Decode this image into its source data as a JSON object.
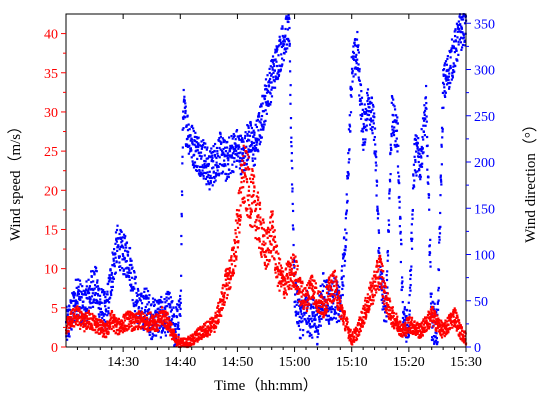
{
  "chart_data": {
    "type": "scatter",
    "x_axis": {
      "label": "Time（hh:mm）",
      "range_minutes": [
        860,
        930
      ],
      "tick_values_minutes": [
        870,
        880,
        890,
        900,
        910,
        920,
        930
      ],
      "tick_labels": [
        "14:30",
        "14:40",
        "14:50",
        "15:00",
        "15:10",
        "15:20",
        "15:30"
      ]
    },
    "y_left": {
      "label": "Wind speed（m/s）",
      "color": "#ff0000",
      "range": [
        0,
        42.5
      ],
      "ticks": [
        0,
        5,
        10,
        15,
        20,
        25,
        30,
        35,
        40
      ],
      "tick_labels": [
        "0",
        "5",
        "10",
        "15",
        "20",
        "25",
        "30",
        "35",
        "40"
      ]
    },
    "y_right": {
      "label": "Wind direction（°）",
      "color": "#0000ff",
      "range": [
        0,
        360
      ],
      "ticks": [
        0,
        50,
        100,
        150,
        200,
        250,
        300,
        350
      ],
      "tick_labels": [
        "0",
        "50",
        "100",
        "150",
        "200",
        "250",
        "300",
        "350"
      ]
    },
    "series": [
      {
        "color": "#0000ff",
        "axis": "right",
        "profile": [
          [
            860,
            20
          ],
          [
            861,
            35
          ],
          [
            862,
            60
          ],
          [
            863,
            40
          ],
          [
            864,
            55
          ],
          [
            865,
            70
          ],
          [
            866,
            45
          ],
          [
            867,
            35
          ],
          [
            868,
            80
          ],
          [
            869,
            110
          ],
          [
            870,
            100
          ],
          [
            871,
            95
          ],
          [
            872,
            60
          ],
          [
            873,
            35
          ],
          [
            874,
            45
          ],
          [
            875,
            30
          ],
          [
            876,
            35
          ],
          [
            877,
            30
          ],
          [
            878,
            40
          ],
          [
            879,
            20
          ],
          [
            880,
            35
          ],
          [
            880.5,
            260
          ],
          [
            881,
            240
          ],
          [
            882,
            220
          ],
          [
            883,
            210
          ],
          [
            884,
            205
          ],
          [
            885,
            190
          ],
          [
            886,
            200
          ],
          [
            887,
            210
          ],
          [
            888,
            200
          ],
          [
            889,
            210
          ],
          [
            890,
            215
          ],
          [
            891,
            205
          ],
          [
            892,
            225
          ],
          [
            893,
            215
          ],
          [
            894,
            240
          ],
          [
            895,
            270
          ],
          [
            896,
            290
          ],
          [
            897,
            310
          ],
          [
            898,
            330
          ],
          [
            899,
            350
          ],
          [
            900,
            60
          ],
          [
            901,
            30
          ],
          [
            902,
            40
          ],
          [
            903,
            30
          ],
          [
            904,
            25
          ],
          [
            905,
            60
          ],
          [
            906,
            45
          ],
          [
            907,
            55
          ],
          [
            908,
            40
          ],
          [
            909,
            130
          ],
          [
            910,
            300
          ],
          [
            911,
            320
          ],
          [
            912,
            230
          ],
          [
            913,
            270
          ],
          [
            914,
            230
          ],
          [
            915,
            70
          ],
          [
            916,
            40
          ],
          [
            917,
            250
          ],
          [
            918,
            230
          ],
          [
            919,
            25
          ],
          [
            920,
            30
          ],
          [
            921,
            210
          ],
          [
            922,
            200
          ],
          [
            923,
            260
          ],
          [
            924,
            30
          ],
          [
            925,
            20
          ],
          [
            926,
            280
          ],
          [
            927,
            300
          ],
          [
            928,
            320
          ],
          [
            929,
            340
          ],
          [
            930,
            350
          ]
        ]
      },
      {
        "color": "#ff0000",
        "axis": "left",
        "profile": [
          [
            860,
            2.5
          ],
          [
            861,
            3.5
          ],
          [
            862,
            4.0
          ],
          [
            863,
            3.0
          ],
          [
            864,
            3.5
          ],
          [
            865,
            3.0
          ],
          [
            866,
            2.5
          ],
          [
            867,
            2.0
          ],
          [
            868,
            3.5
          ],
          [
            869,
            2.5
          ],
          [
            870,
            3.0
          ],
          [
            871,
            3.5
          ],
          [
            872,
            3.0
          ],
          [
            873,
            3.5
          ],
          [
            874,
            3.0
          ],
          [
            875,
            3.5
          ],
          [
            876,
            3.0
          ],
          [
            877,
            4.0
          ],
          [
            878,
            3.0
          ],
          [
            879,
            1.0
          ],
          [
            880,
            0.5
          ],
          [
            881,
            0.5
          ],
          [
            882,
            0.8
          ],
          [
            883,
            1.5
          ],
          [
            884,
            2.0
          ],
          [
            885,
            2.5
          ],
          [
            886,
            3.0
          ],
          [
            887,
            5.0
          ],
          [
            888,
            8.0
          ],
          [
            889,
            10.0
          ],
          [
            890,
            15.0
          ],
          [
            891,
            22.0
          ],
          [
            892,
            20.0
          ],
          [
            893,
            18.0
          ],
          [
            894,
            15.0
          ],
          [
            895,
            12.0
          ],
          [
            896,
            15.0
          ],
          [
            897,
            10.0
          ],
          [
            898,
            8.0
          ],
          [
            899,
            9.0
          ],
          [
            900,
            10.0
          ],
          [
            901,
            7.0
          ],
          [
            902,
            6.0
          ],
          [
            903,
            8.0
          ],
          [
            904,
            6.0
          ],
          [
            905,
            5.0
          ],
          [
            906,
            7.0
          ],
          [
            907,
            8.0
          ],
          [
            908,
            5.0
          ],
          [
            909,
            3.0
          ],
          [
            910,
            1.0
          ],
          [
            911,
            2.0
          ],
          [
            912,
            4.0
          ],
          [
            913,
            6.0
          ],
          [
            914,
            8.0
          ],
          [
            915,
            10.0
          ],
          [
            916,
            6.0
          ],
          [
            917,
            4.0
          ],
          [
            918,
            3.0
          ],
          [
            919,
            2.0
          ],
          [
            920,
            3.0
          ],
          [
            921,
            2.5
          ],
          [
            922,
            2.0
          ],
          [
            923,
            3.0
          ],
          [
            924,
            4.0
          ],
          [
            925,
            3.0
          ],
          [
            926,
            2.0
          ],
          [
            927,
            3.0
          ],
          [
            928,
            4.0
          ],
          [
            929,
            2.0
          ],
          [
            930,
            1.0
          ]
        ]
      }
    ]
  }
}
